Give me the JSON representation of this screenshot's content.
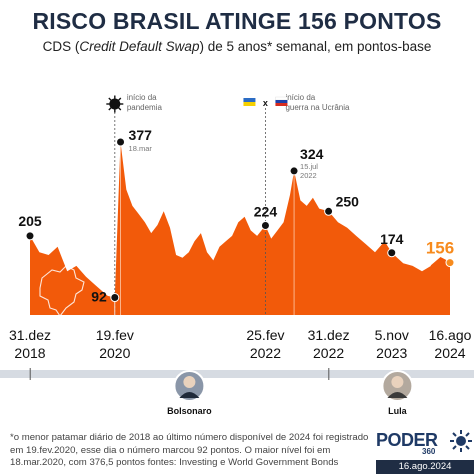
{
  "header": {
    "title": "RISCO BRASIL ATINGE 156 PONTOS",
    "subtitle_pre": "CDS (",
    "subtitle_em": "Credit Default Swap",
    "subtitle_post": ") de 5 anos* semanal, em pontos-base"
  },
  "chart_data": {
    "type": "area",
    "color": "#f25a0a",
    "highlight_color": "#f78b1e",
    "x_start": "2018-12-31",
    "x_end": "2024-08-16",
    "series": [
      {
        "x": [
          "2018-12-31",
          "2019-02-15",
          "2019-04-01",
          "2019-05-15",
          "2019-07-01",
          "2019-08-15",
          "2019-10-01",
          "2019-11-15",
          "2019-12-31",
          "2020-01-15",
          "2020-02-19",
          "2020-03-18",
          "2020-04-15",
          "2020-05-15",
          "2020-06-15",
          "2020-07-15",
          "2020-08-15",
          "2020-09-15",
          "2020-10-15",
          "2020-11-15",
          "2020-12-15",
          "2021-01-15",
          "2021-02-15",
          "2021-03-15",
          "2021-04-15",
          "2021-05-15",
          "2021-06-15",
          "2021-07-15",
          "2021-08-15",
          "2021-09-15",
          "2021-10-15",
          "2021-11-15",
          "2021-12-15",
          "2022-01-15",
          "2022-02-25",
          "2022-03-25",
          "2022-04-25",
          "2022-05-25",
          "2022-06-25",
          "2022-07-15",
          "2022-08-15",
          "2022-09-15",
          "2022-10-15",
          "2022-11-15",
          "2022-12-31",
          "2023-02-15",
          "2023-04-01",
          "2023-05-15",
          "2023-07-01",
          "2023-08-15",
          "2023-10-01",
          "2023-11-05",
          "2023-12-31",
          "2024-02-15",
          "2024-04-01",
          "2024-05-15",
          "2024-07-01",
          "2024-08-16"
        ],
        "y": [
          205,
          175,
          170,
          185,
          140,
          150,
          130,
          115,
          100,
          95,
          92,
          377,
          290,
          260,
          245,
          230,
          210,
          225,
          250,
          220,
          170,
          165,
          175,
          195,
          210,
          175,
          160,
          185,
          195,
          205,
          230,
          240,
          215,
          205,
          224,
          200,
          215,
          230,
          280,
          324,
          270,
          260,
          275,
          255,
          250,
          230,
          220,
          205,
          190,
          175,
          195,
          174,
          155,
          150,
          140,
          150,
          165,
          156
        ]
      }
    ],
    "annotations": [
      {
        "label": "205",
        "x": "2018-12-31",
        "y": 205
      },
      {
        "label": "92",
        "x": "2020-02-19",
        "y": 92
      },
      {
        "label": "377",
        "x": "2020-03-18",
        "y": 377,
        "date": "18.mar"
      },
      {
        "label": "224",
        "x": "2022-02-25",
        "y": 224
      },
      {
        "label": "324",
        "x": "2022-07-15",
        "y": 324,
        "date": "15.jul 2022"
      },
      {
        "label": "250",
        "x": "2022-12-31",
        "y": 250
      },
      {
        "label": "174",
        "x": "2023-11-05",
        "y": 174
      },
      {
        "label": "156",
        "x": "2024-08-16",
        "y": 156
      }
    ],
    "events": [
      {
        "label": "início da pandemia",
        "x": "2020-02-19"
      },
      {
        "label": "início da guerra na Ucrânia",
        "x": "2022-02-25"
      }
    ],
    "x_ticks": [
      {
        "day": "31.dez",
        "year": "2018",
        "x": "2018-12-31"
      },
      {
        "day": "19.fev",
        "year": "2020",
        "x": "2020-02-19"
      },
      {
        "day": "25.fev",
        "year": "2022",
        "x": "2022-02-25"
      },
      {
        "day": "31.dez",
        "year": "2022",
        "x": "2022-12-31"
      },
      {
        "day": "5.nov",
        "year": "2023",
        "x": "2023-11-05"
      },
      {
        "day": "16.ago",
        "year": "2024",
        "x": "2024-08-16"
      }
    ],
    "timeline": [
      {
        "name": "Bolsonaro",
        "start": "2019-01-01",
        "end": "2022-12-31"
      },
      {
        "name": "Lula",
        "start": "2023-01-01",
        "end": "2024-08-16"
      }
    ]
  },
  "footnote": "*o menor patamar diário de 2018 ao último número disponível de 2024 foi registrado em 19.fev.2020, esse dia o número marcou 92 pontos. O maior nível foi em 18.mar.2020, com 376,5 pontos fontes: Investing e World Government Bonds",
  "logo": {
    "text": "PODER",
    "sub": "360",
    "date": "16.ago.2024",
    "color": "#1f3a66"
  }
}
